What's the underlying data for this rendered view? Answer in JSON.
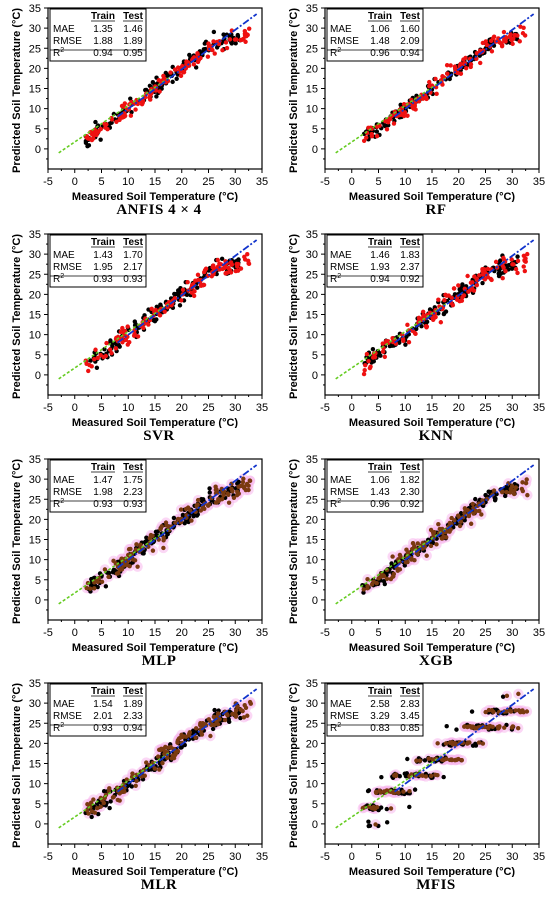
{
  "shared": {
    "xlabel": "Measured Soil Temperature (°C)",
    "ylabel": "Predicted Soil Temperature (°C)",
    "col_train": "Train",
    "col_test": "Test",
    "row_labels": [
      "MAE",
      "RMSE",
      "R"
    ],
    "r2_superscript": "2",
    "x_ticks": [
      "-5",
      "0",
      "5",
      "10",
      "15",
      "20",
      "25",
      "30",
      "35"
    ],
    "y_ticks": [
      "0",
      "5",
      "10",
      "15",
      "20",
      "25",
      "30",
      "35"
    ],
    "colors": {
      "train": "#000000",
      "test_red": "#ee1111",
      "test_brown": "#7a3a10",
      "halo_pink": "#f7b6ec",
      "ideal_line": "#66cc22",
      "fit_line": "#1133cc"
    }
  },
  "chart_data": [
    {
      "type": "scatter",
      "title": "ANFIS 4 × 4",
      "xlim": [
        -5,
        35
      ],
      "ylim": [
        -5,
        35
      ],
      "metrics": {
        "MAE": [
          "1.35",
          "1.46"
        ],
        "RMSE": [
          "1.88",
          "1.89"
        ],
        "R2": [
          "0.94",
          "0.95"
        ]
      },
      "style": "red",
      "x_range": [
        -2,
        34
      ]
    },
    {
      "type": "scatter",
      "title": "RF",
      "xlim": [
        -5,
        35
      ],
      "ylim": [
        -5,
        35
      ],
      "metrics": {
        "MAE": [
          "1.06",
          "1.60"
        ],
        "RMSE": [
          "1.48",
          "2.09"
        ],
        "R2": [
          "0.96",
          "0.94"
        ]
      },
      "style": "red",
      "x_range": [
        -2,
        34
      ]
    },
    {
      "type": "scatter",
      "title": "SVR",
      "xlim": [
        -5,
        35
      ],
      "ylim": [
        -5,
        35
      ],
      "metrics": {
        "MAE": [
          "1.43",
          "1.70"
        ],
        "RMSE": [
          "1.95",
          "2.17"
        ],
        "R2": [
          "0.93",
          "0.93"
        ]
      },
      "style": "red",
      "x_range": [
        -2,
        34
      ]
    },
    {
      "type": "scatter",
      "title": "KNN",
      "xlim": [
        -5,
        35
      ],
      "ylim": [
        -5,
        35
      ],
      "metrics": {
        "MAE": [
          "1.46",
          "1.83"
        ],
        "RMSE": [
          "1.93",
          "2.37"
        ],
        "R2": [
          "0.94",
          "0.92"
        ]
      },
      "style": "red",
      "x_range": [
        -2,
        34
      ]
    },
    {
      "type": "scatter",
      "title": "MLP",
      "xlim": [
        -5,
        35
      ],
      "ylim": [
        -5,
        35
      ],
      "metrics": {
        "MAE": [
          "1.47",
          "1.75"
        ],
        "RMSE": [
          "1.98",
          "2.23"
        ],
        "R2": [
          "0.93",
          "0.93"
        ]
      },
      "style": "brown",
      "x_range": [
        -2,
        34
      ]
    },
    {
      "type": "scatter",
      "title": "XGB",
      "xlim": [
        -5,
        35
      ],
      "ylim": [
        -5,
        35
      ],
      "metrics": {
        "MAE": [
          "1.06",
          "1.82"
        ],
        "RMSE": [
          "1.43",
          "2.30"
        ],
        "R2": [
          "0.96",
          "0.92"
        ]
      },
      "style": "brown",
      "x_range": [
        -2,
        34
      ]
    },
    {
      "type": "scatter",
      "title": "MLR",
      "xlim": [
        -5,
        35
      ],
      "ylim": [
        -5,
        35
      ],
      "metrics": {
        "MAE": [
          "1.54",
          "1.89"
        ],
        "RMSE": [
          "2.01",
          "2.33"
        ],
        "R2": [
          "0.93",
          "0.94"
        ]
      },
      "style": "brown",
      "x_range": [
        -2,
        34
      ]
    },
    {
      "type": "scatter",
      "title": "MFIS",
      "xlim": [
        -5,
        35
      ],
      "ylim": [
        -5,
        35
      ],
      "metrics": {
        "MAE": [
          "2.58",
          "2.83"
        ],
        "RMSE": [
          "3.29",
          "3.45"
        ],
        "R2": [
          "0.83",
          "0.85"
        ]
      },
      "style": "steps",
      "x_range": [
        -2,
        34
      ]
    }
  ]
}
